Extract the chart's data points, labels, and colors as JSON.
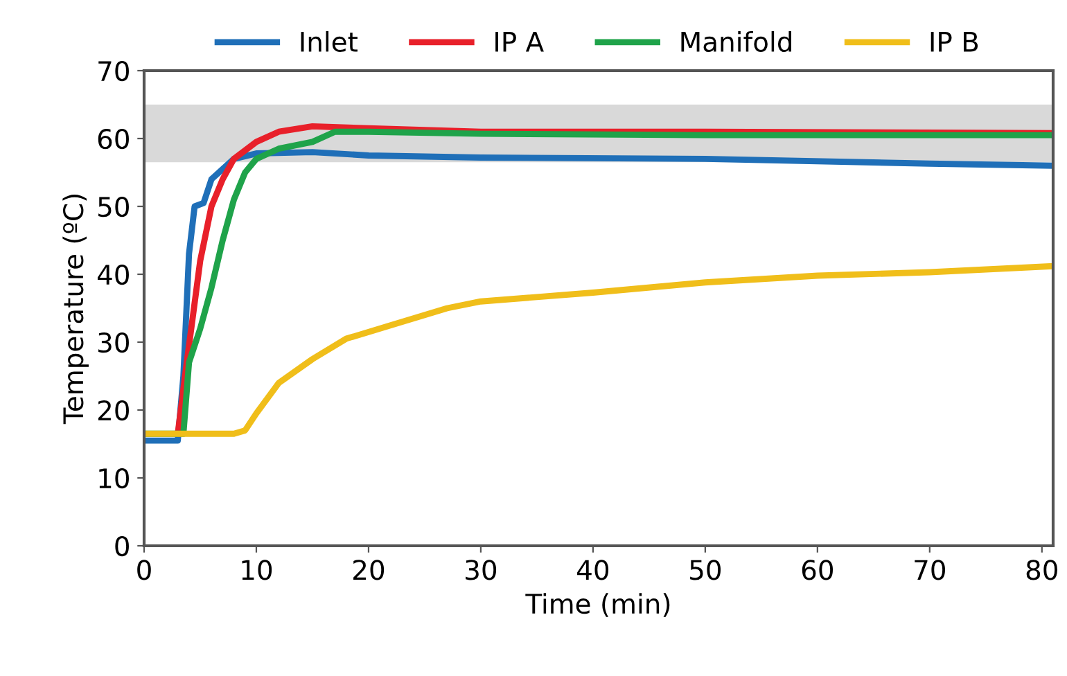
{
  "chart_data": {
    "type": "line",
    "xlabel": "Time (min)",
    "ylabel": "Temperature (ºC)",
    "xlim": [
      0,
      81
    ],
    "xticks": [
      0,
      10,
      20,
      30,
      40,
      50,
      60,
      70,
      80
    ],
    "ylim": [
      0,
      70
    ],
    "yticks": [
      0,
      10,
      20,
      30,
      40,
      50,
      60,
      70
    ],
    "grid": false,
    "legend": "top",
    "line_style": "solid",
    "marker": "none",
    "bands": [
      {
        "axis": "y",
        "from": 56.5,
        "to": 65,
        "color": "#d9d9d9"
      }
    ],
    "series": [
      {
        "name": "Inlet",
        "color": "#1f6fb8",
        "x": [
          0,
          3,
          3.5,
          4,
          4.5,
          5.3,
          6,
          7,
          8,
          10,
          15,
          20,
          30,
          50,
          70,
          81
        ],
        "values": [
          15.5,
          15.5,
          25,
          43,
          50,
          50.5,
          54,
          55.5,
          57,
          57.8,
          58,
          57.5,
          57.2,
          57,
          56.3,
          56
        ]
      },
      {
        "name": "IP A",
        "color": "#e8202a",
        "x": [
          3,
          3.8,
          5,
          6,
          7,
          8,
          10,
          12,
          15,
          20,
          30,
          50,
          81
        ],
        "values": [
          16.5,
          27,
          42,
          50,
          54,
          57,
          59.5,
          61,
          61.8,
          61.5,
          61,
          61,
          60.8
        ]
      },
      {
        "name": "Manifold",
        "color": "#1fa34a",
        "x": [
          0,
          3.5,
          4,
          5,
          6,
          7,
          8,
          9,
          10,
          12,
          15,
          17,
          20,
          30,
          50,
          81
        ],
        "values": [
          16.5,
          16.5,
          27,
          32,
          38,
          45,
          51,
          55,
          57,
          58.5,
          59.5,
          61,
          61,
          60.7,
          60.5,
          60.5
        ]
      },
      {
        "name": "IP B",
        "color": "#f0be1a",
        "x": [
          0,
          8,
          9,
          10,
          12,
          15,
          18,
          22,
          27,
          30,
          40,
          50,
          60,
          70,
          81
        ],
        "values": [
          16.5,
          16.5,
          17,
          19.5,
          24,
          27.5,
          30.5,
          32.5,
          35,
          36,
          37.3,
          38.8,
          39.8,
          40.3,
          41.2
        ]
      }
    ]
  }
}
